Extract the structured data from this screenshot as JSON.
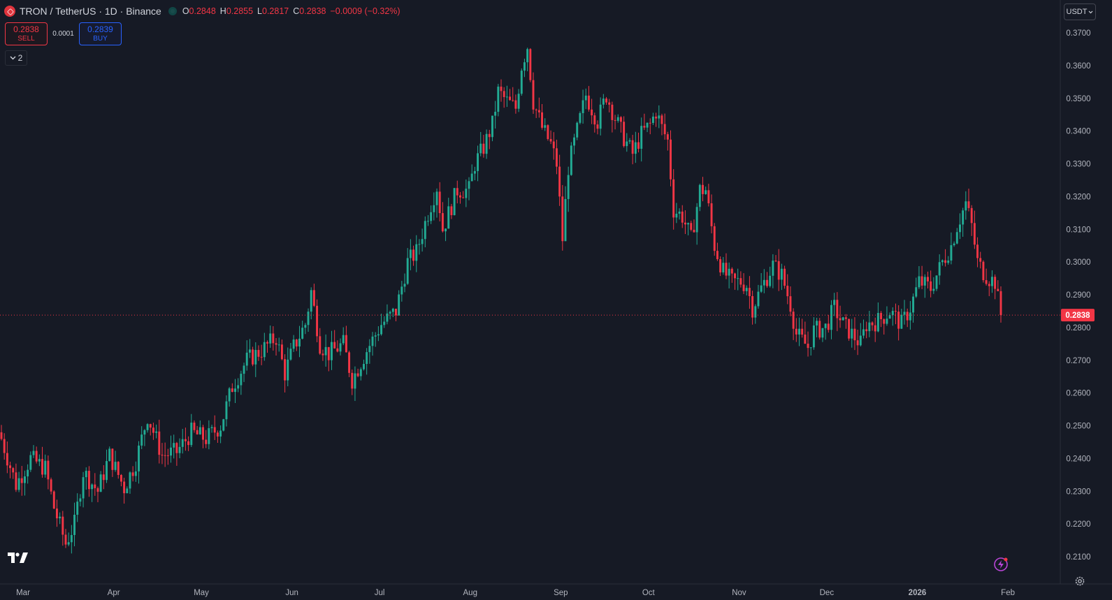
{
  "legend": {
    "symbol_title": "TRON / TetherUS · 1D · Binance",
    "open_label": "O",
    "open": "0.2848",
    "high_label": "H",
    "high": "0.2855",
    "low_label": "L",
    "low": "0.2817",
    "close_label": "C",
    "close": "0.2838",
    "change": "−0.0009 (−0.32%)"
  },
  "trading": {
    "sell_price": "0.2838",
    "sell_label": "SELL",
    "spread": "0.0001",
    "buy_price": "0.2839",
    "buy_label": "BUY"
  },
  "indicators_toggle": {
    "count": "2"
  },
  "currency_button": "USDT",
  "current_price_label": "0.2838",
  "colors": {
    "up": "#22ab94",
    "down": "#f23645",
    "background": "#161a25",
    "grid_text": "#b2b5be"
  },
  "chart_data": {
    "type": "candlestick",
    "title": "",
    "price_axis": {
      "ticks": [
        "0.3700",
        "0.3600",
        "0.3500",
        "0.3400",
        "0.3300",
        "0.3200",
        "0.3100",
        "0.3000",
        "0.2900",
        "0.2800",
        "0.2700",
        "0.2600",
        "0.2500",
        "0.2400",
        "0.2300",
        "0.2200",
        "0.2100"
      ],
      "ylim": [
        0.2078,
        0.376
      ]
    },
    "time_axis": {
      "ticks": [
        "Mar",
        "Apr",
        "May",
        "Jun",
        "Jul",
        "Aug",
        "Sep",
        "Oct",
        "Nov",
        "Dec",
        "2026",
        "Feb"
      ],
      "tick_days": [
        0,
        31,
        61,
        92,
        122,
        153,
        184,
        214,
        245,
        275,
        306,
        337
      ]
    },
    "current_price": 0.2838,
    "close_anchors": [
      [
        0,
        0.246
      ],
      [
        5,
        0.232
      ],
      [
        10,
        0.24
      ],
      [
        15,
        0.237
      ],
      [
        18,
        0.225
      ],
      [
        22,
        0.214
      ],
      [
        25,
        0.22
      ],
      [
        28,
        0.236
      ],
      [
        33,
        0.23
      ],
      [
        37,
        0.241
      ],
      [
        42,
        0.231
      ],
      [
        46,
        0.239
      ],
      [
        50,
        0.253
      ],
      [
        55,
        0.241
      ],
      [
        60,
        0.242
      ],
      [
        65,
        0.248
      ],
      [
        70,
        0.246
      ],
      [
        75,
        0.25
      ],
      [
        79,
        0.262
      ],
      [
        84,
        0.27
      ],
      [
        89,
        0.273
      ],
      [
        94,
        0.277
      ],
      [
        97,
        0.266
      ],
      [
        100,
        0.274
      ],
      [
        104,
        0.281
      ],
      [
        106,
        0.291
      ],
      [
        109,
        0.275
      ],
      [
        112,
        0.272
      ],
      [
        117,
        0.275
      ],
      [
        120,
        0.264
      ],
      [
        125,
        0.273
      ],
      [
        130,
        0.281
      ],
      [
        135,
        0.285
      ],
      [
        139,
        0.3
      ],
      [
        142,
        0.303
      ],
      [
        146,
        0.315
      ],
      [
        149,
        0.323
      ],
      [
        151,
        0.31
      ],
      [
        156,
        0.322
      ],
      [
        160,
        0.322
      ],
      [
        162,
        0.33
      ],
      [
        165,
        0.335
      ],
      [
        168,
        0.342
      ],
      [
        170,
        0.352
      ],
      [
        173,
        0.349
      ],
      [
        176,
        0.347
      ],
      [
        178,
        0.36
      ],
      [
        180,
        0.366
      ],
      [
        182,
        0.349
      ],
      [
        185,
        0.341
      ],
      [
        188,
        0.336
      ],
      [
        190,
        0.33
      ],
      [
        192,
        0.307
      ],
      [
        194,
        0.329
      ],
      [
        197,
        0.34
      ],
      [
        200,
        0.351
      ],
      [
        204,
        0.343
      ],
      [
        207,
        0.351
      ],
      [
        210,
        0.344
      ],
      [
        213,
        0.338
      ],
      [
        216,
        0.333
      ],
      [
        219,
        0.339
      ],
      [
        222,
        0.342
      ],
      [
        224,
        0.346
      ],
      [
        226,
        0.341
      ],
      [
        228,
        0.337
      ],
      [
        230,
        0.316
      ],
      [
        233,
        0.314
      ],
      [
        236,
        0.307
      ],
      [
        239,
        0.322
      ],
      [
        241,
        0.322
      ],
      [
        244,
        0.305
      ],
      [
        247,
        0.297
      ],
      [
        250,
        0.294
      ],
      [
        253,
        0.294
      ],
      [
        255,
        0.293
      ],
      [
        257,
        0.286
      ],
      [
        260,
        0.292
      ],
      [
        264,
        0.299
      ],
      [
        267,
        0.296
      ],
      [
        270,
        0.287
      ],
      [
        272,
        0.278
      ],
      [
        276,
        0.274
      ],
      [
        278,
        0.279
      ],
      [
        282,
        0.28
      ],
      [
        285,
        0.286
      ],
      [
        288,
        0.281
      ],
      [
        292,
        0.277
      ],
      [
        294,
        0.275
      ],
      [
        296,
        0.281
      ],
      [
        300,
        0.282
      ],
      [
        304,
        0.285
      ],
      [
        308,
        0.281
      ],
      [
        311,
        0.286
      ],
      [
        314,
        0.294
      ],
      [
        318,
        0.292
      ],
      [
        322,
        0.3
      ],
      [
        325,
        0.305
      ],
      [
        327,
        0.311
      ],
      [
        330,
        0.318
      ],
      [
        332,
        0.311
      ],
      [
        334,
        0.3
      ],
      [
        336,
        0.297
      ],
      [
        338,
        0.295
      ],
      [
        340,
        0.294
      ],
      [
        342,
        0.283
      ]
    ],
    "last_day": 342
  }
}
